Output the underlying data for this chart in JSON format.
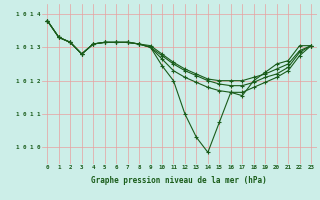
{
  "bg_color": "#cceee8",
  "grid_color": "#e8a0a0",
  "line_color": "#1a5c1a",
  "xlabel": "Graphe pression niveau de la mer (hPa)",
  "xlim": [
    -0.5,
    23.5
  ],
  "ylim": [
    1009.5,
    1014.3
  ],
  "yticks": [
    1010,
    1011,
    1012,
    1013,
    1014
  ],
  "ytick_labels": [
    "1 0 1 0",
    "1 0 1 1",
    "1 0 1 2",
    "1 0 1 3",
    "1 0 1 4"
  ],
  "series": [
    [
      1013.8,
      1013.3,
      1013.15,
      1012.8,
      1013.1,
      1013.15,
      1013.15,
      1013.15,
      1013.1,
      1013.0,
      1012.45,
      1012.0,
      1011.0,
      1010.3,
      1009.85,
      1010.75,
      1011.65,
      1011.55,
      1012.0,
      1012.25,
      1012.5,
      1012.6,
      1013.05,
      1013.05
    ],
    [
      1013.8,
      1013.3,
      1013.15,
      1012.8,
      1013.1,
      1013.15,
      1013.15,
      1013.15,
      1013.1,
      1013.0,
      1012.65,
      1012.3,
      1012.1,
      1011.95,
      1011.8,
      1011.7,
      1011.65,
      1011.65,
      1011.8,
      1011.95,
      1012.1,
      1012.3,
      1012.75,
      1013.05
    ],
    [
      1013.8,
      1013.3,
      1013.15,
      1012.8,
      1013.1,
      1013.15,
      1013.15,
      1013.15,
      1013.1,
      1013.0,
      1012.75,
      1012.5,
      1012.3,
      1012.15,
      1012.0,
      1011.9,
      1011.85,
      1011.85,
      1011.95,
      1012.1,
      1012.2,
      1012.4,
      1012.85,
      1013.05
    ],
    [
      1013.8,
      1013.3,
      1013.15,
      1012.8,
      1013.1,
      1013.15,
      1013.15,
      1013.15,
      1013.1,
      1013.05,
      1012.8,
      1012.55,
      1012.35,
      1012.2,
      1012.05,
      1012.0,
      1012.0,
      1012.0,
      1012.1,
      1012.2,
      1012.35,
      1012.5,
      1012.9,
      1013.05
    ]
  ]
}
